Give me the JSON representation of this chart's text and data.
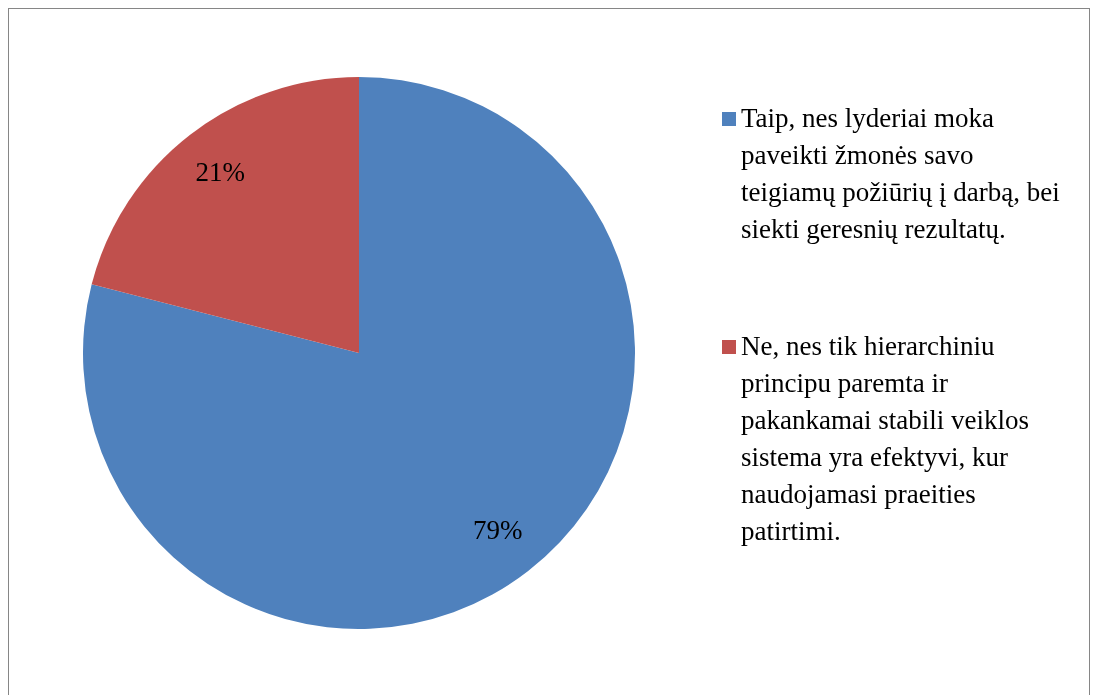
{
  "chart_data": {
    "type": "pie",
    "categories": [
      "Taip, nes lyderiai moka paveikti žmonės savo teigiamų požiūrių į darbą, bei siekti geresnių rezultatų.",
      "Ne, nes tik hierarchiniu principu paremta ir pakankamai stabili veiklos sistema yra efektyvi, kur naudojamasi praeities patirtimi."
    ],
    "values": [
      79,
      21
    ],
    "colors": [
      "#4f81bd",
      "#c0504d"
    ],
    "value_labels": [
      "79%",
      "21%"
    ],
    "legend": "right"
  }
}
